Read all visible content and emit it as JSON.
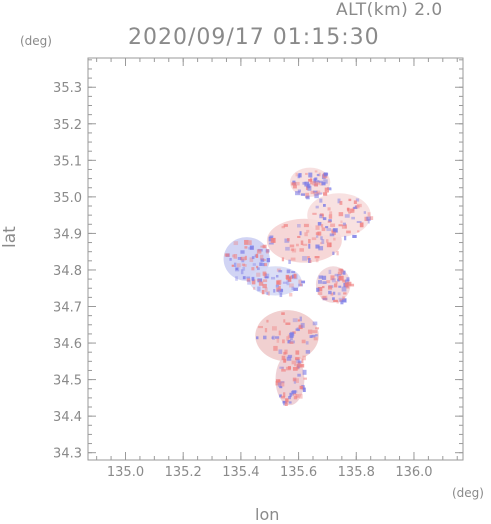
{
  "header": {
    "altitude": "ALT(km) 2.0",
    "datetime": "2020/09/17 01:15:30"
  },
  "chart_data": {
    "type": "heatmap",
    "xlabel": "lon",
    "ylabel": "lat",
    "x_unit": "(deg)",
    "y_unit": "(deg)",
    "xlim": [
      134.87,
      136.17
    ],
    "ylim": [
      34.28,
      35.38
    ],
    "xticks": [
      "135.0",
      "135.2",
      "135.4",
      "135.6",
      "135.8",
      "136.0"
    ],
    "yticks": [
      "34.3",
      "34.4",
      "34.5",
      "34.6",
      "34.7",
      "34.8",
      "34.9",
      "35.0",
      "35.1",
      "35.2",
      "35.3"
    ],
    "colors": {
      "positive": "#f08080",
      "negative": "#7a7ae6",
      "axis": "#9a9a9a"
    },
    "echo_regions": [
      {
        "lon": 135.42,
        "lat": 34.83,
        "rx": 0.08,
        "ry": 0.06,
        "color": "#c9cdf2"
      },
      {
        "lon": 135.52,
        "lat": 34.77,
        "rx": 0.09,
        "ry": 0.04,
        "color": "#d4d8f5"
      },
      {
        "lon": 135.62,
        "lat": 34.88,
        "rx": 0.13,
        "ry": 0.06,
        "color": "#f4d0d0"
      },
      {
        "lon": 135.74,
        "lat": 34.95,
        "rx": 0.11,
        "ry": 0.06,
        "color": "#f7dcdc"
      },
      {
        "lon": 135.64,
        "lat": 35.04,
        "rx": 0.07,
        "ry": 0.04,
        "color": "#f6dada"
      },
      {
        "lon": 135.56,
        "lat": 34.62,
        "rx": 0.11,
        "ry": 0.07,
        "color": "#efc8c8"
      },
      {
        "lon": 135.57,
        "lat": 34.5,
        "rx": 0.05,
        "ry": 0.07,
        "color": "#ecc9cf"
      },
      {
        "lon": 135.72,
        "lat": 34.76,
        "rx": 0.06,
        "ry": 0.05,
        "color": "#f0d2d6"
      }
    ]
  }
}
